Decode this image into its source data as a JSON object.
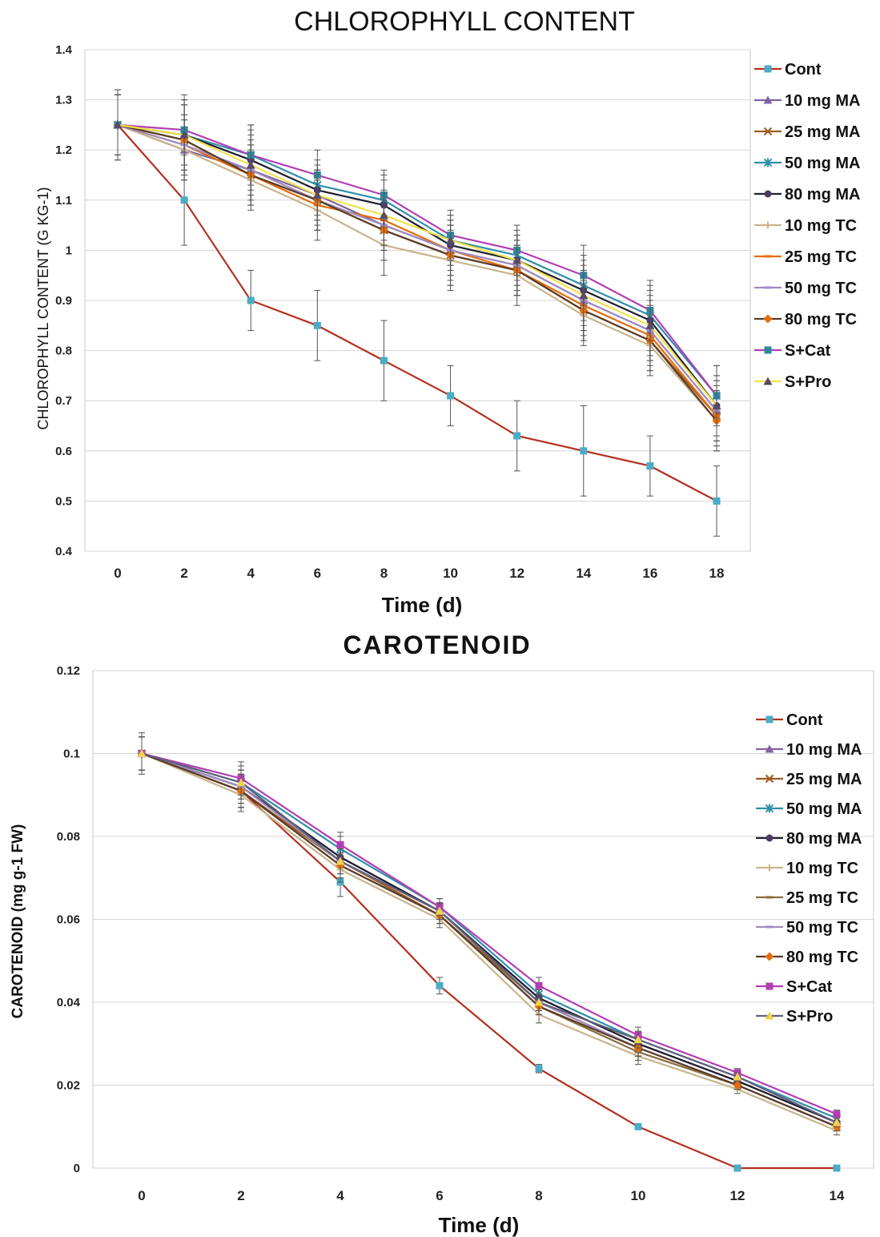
{
  "chart_data": [
    {
      "type": "line",
      "title": "CHLOROPHYLL CONTENT",
      "xlabel": "Time (d)",
      "ylabel": "CHLOROPHYLL CONTENT (G KG-1)",
      "x": [
        0,
        2,
        4,
        6,
        8,
        10,
        12,
        14,
        16,
        18
      ],
      "xlim": [
        0,
        18
      ],
      "ylim": [
        0.4,
        1.4
      ],
      "yticks": [
        "0.4",
        "0.5",
        "0.6",
        "0.7",
        "0.8",
        "0.9",
        "1",
        "1.1",
        "1.2",
        "1.3",
        "1.4"
      ],
      "grid": true,
      "legend_position": "right",
      "series": [
        {
          "name": "Cont",
          "color": "#b5301e",
          "marker": "square",
          "marker_color": "#4bacc6",
          "values": [
            1.25,
            1.1,
            0.9,
            0.85,
            0.78,
            0.71,
            0.63,
            0.6,
            0.57,
            0.5
          ],
          "errors": [
            0.07,
            0.09,
            0.06,
            0.07,
            0.08,
            0.06,
            0.07,
            0.09,
            0.06,
            0.07
          ]
        },
        {
          "name": "10 mg MA",
          "color": "#8064a2",
          "marker": "triangle",
          "marker_color": "#8064a2",
          "values": [
            1.25,
            1.2,
            1.16,
            1.11,
            1.05,
            1.0,
            0.97,
            0.9,
            0.84,
            0.68
          ],
          "errors": [
            0.06,
            0.06,
            0.05,
            0.05,
            0.05,
            0.06,
            0.05,
            0.06,
            0.06,
            0.06
          ]
        },
        {
          "name": "25 mg MA",
          "color": "#9b5b1e",
          "marker": "x",
          "marker_color": "#9b5b1e",
          "values": [
            1.25,
            1.22,
            1.15,
            1.1,
            1.04,
            0.99,
            0.96,
            0.88,
            0.82,
            0.67
          ],
          "errors": [
            0.06,
            0.07,
            0.06,
            0.06,
            0.06,
            0.06,
            0.05,
            0.06,
            0.06,
            0.06
          ]
        },
        {
          "name": "50 mg MA",
          "color": "#2f8fa8",
          "marker": "star",
          "marker_color": "#2f8fa8",
          "values": [
            1.25,
            1.23,
            1.19,
            1.13,
            1.1,
            1.02,
            0.99,
            0.93,
            0.87,
            0.71
          ],
          "errors": [
            0.07,
            0.07,
            0.06,
            0.05,
            0.05,
            0.05,
            0.05,
            0.06,
            0.06,
            0.06
          ]
        },
        {
          "name": "80 mg MA",
          "color": "#1f1f2e",
          "marker": "circle",
          "marker_color": "#4b3b64",
          "values": [
            1.25,
            1.23,
            1.18,
            1.12,
            1.09,
            1.01,
            0.98,
            0.92,
            0.86,
            0.69
          ],
          "errors": [
            0.06,
            0.07,
            0.06,
            0.05,
            0.05,
            0.05,
            0.05,
            0.06,
            0.06,
            0.06
          ]
        },
        {
          "name": "10 mg TC",
          "color": "#c9b48c",
          "marker": "plus",
          "marker_color": "#c9b48c",
          "values": [
            1.25,
            1.2,
            1.14,
            1.08,
            1.01,
            0.98,
            0.95,
            0.87,
            0.81,
            0.66
          ],
          "errors": [
            0.06,
            0.06,
            0.06,
            0.06,
            0.06,
            0.06,
            0.06,
            0.06,
            0.06,
            0.06
          ]
        },
        {
          "name": "25 mg TC",
          "color": "#e36c09",
          "marker": "dash",
          "marker_color": "#e36c09",
          "values": [
            1.25,
            1.21,
            1.15,
            1.09,
            1.06,
            1.0,
            0.96,
            0.89,
            0.83,
            0.67
          ],
          "errors": [
            0.06,
            0.06,
            0.06,
            0.05,
            0.05,
            0.05,
            0.05,
            0.06,
            0.06,
            0.06
          ]
        },
        {
          "name": "50 mg TC",
          "color": "#a08cc0",
          "marker": "dash",
          "marker_color": "#a08cc0",
          "values": [
            1.25,
            1.21,
            1.16,
            1.1,
            1.05,
            1.0,
            0.97,
            0.9,
            0.84,
            0.68
          ],
          "errors": [
            0.06,
            0.06,
            0.06,
            0.05,
            0.05,
            0.05,
            0.05,
            0.06,
            0.06,
            0.06
          ]
        },
        {
          "name": "80 mg TC",
          "color": "#5a3c28",
          "marker": "diamond",
          "marker_color": "#e36c09",
          "values": [
            1.25,
            1.22,
            1.15,
            1.1,
            1.04,
            0.99,
            0.96,
            0.88,
            0.82,
            0.66
          ],
          "errors": [
            0.06,
            0.07,
            0.06,
            0.06,
            0.06,
            0.06,
            0.05,
            0.06,
            0.06,
            0.06
          ]
        },
        {
          "name": "S+Cat",
          "color": "#b23fb2",
          "marker": "square",
          "marker_color": "#31859c",
          "values": [
            1.25,
            1.24,
            1.19,
            1.15,
            1.11,
            1.03,
            1.0,
            0.95,
            0.88,
            0.71
          ],
          "errors": [
            0.06,
            0.07,
            0.06,
            0.05,
            0.05,
            0.05,
            0.05,
            0.06,
            0.06,
            0.06
          ]
        },
        {
          "name": "S+Pro",
          "color": "#f2e14c",
          "marker": "triangle",
          "marker_color": "#5a4a6a",
          "values": [
            1.25,
            1.23,
            1.17,
            1.11,
            1.07,
            1.02,
            0.98,
            0.91,
            0.85,
            0.69
          ],
          "errors": [
            0.06,
            0.06,
            0.06,
            0.05,
            0.05,
            0.05,
            0.05,
            0.06,
            0.06,
            0.06
          ]
        }
      ]
    },
    {
      "type": "line",
      "title": "CAROTENOID",
      "xlabel": "Time (d)",
      "ylabel": "CAROTENOID (mg g-1 FW)",
      "x": [
        0,
        2,
        4,
        6,
        8,
        10,
        12,
        14
      ],
      "xlim": [
        0,
        14
      ],
      "ylim": [
        0,
        0.12
      ],
      "yticks": [
        "0",
        "0.02",
        "0.04",
        "0.06",
        "0.08",
        "0.1",
        "0.12"
      ],
      "grid": true,
      "legend_position": "right",
      "series": [
        {
          "name": "Cont",
          "color": "#b5301e",
          "marker": "square",
          "marker_color": "#4bacc6",
          "values": [
            0.1,
            0.091,
            0.069,
            0.044,
            0.024,
            0.01,
            0.0,
            0.0
          ],
          "errors": [
            0.005,
            0.004,
            0.0035,
            0.002,
            0.001,
            0.0005,
            0.0,
            0.0
          ]
        },
        {
          "name": "10 mg MA",
          "color": "#8064a2",
          "marker": "triangle",
          "marker_color": "#8064a2",
          "values": [
            0.1,
            0.092,
            0.075,
            0.062,
            0.041,
            0.03,
            0.021,
            0.011
          ],
          "errors": [
            0.004,
            0.004,
            0.003,
            0.002,
            0.002,
            0.002,
            0.001,
            0.001
          ]
        },
        {
          "name": "25 mg MA",
          "color": "#9b5b1e",
          "marker": "x",
          "marker_color": "#9b5b1e",
          "values": [
            0.1,
            0.091,
            0.074,
            0.061,
            0.04,
            0.029,
            0.02,
            0.01
          ],
          "errors": [
            0.004,
            0.004,
            0.003,
            0.002,
            0.002,
            0.002,
            0.001,
            0.001
          ]
        },
        {
          "name": "50 mg MA",
          "color": "#2f8fa8",
          "marker": "star",
          "marker_color": "#2f8fa8",
          "values": [
            0.1,
            0.093,
            0.077,
            0.063,
            0.042,
            0.031,
            0.022,
            0.012
          ],
          "errors": [
            0.004,
            0.004,
            0.003,
            0.002,
            0.002,
            0.002,
            0.001,
            0.001
          ]
        },
        {
          "name": "80 mg MA",
          "color": "#1f1f2e",
          "marker": "circle",
          "marker_color": "#4b3b64",
          "values": [
            0.1,
            0.092,
            0.075,
            0.062,
            0.041,
            0.03,
            0.021,
            0.011
          ],
          "errors": [
            0.004,
            0.004,
            0.003,
            0.002,
            0.002,
            0.002,
            0.001,
            0.001
          ]
        },
        {
          "name": "10 mg TC",
          "color": "#c9b48c",
          "marker": "plus",
          "marker_color": "#c9b48c",
          "values": [
            0.1,
            0.09,
            0.072,
            0.06,
            0.037,
            0.027,
            0.019,
            0.009
          ],
          "errors": [
            0.004,
            0.004,
            0.003,
            0.002,
            0.002,
            0.002,
            0.001,
            0.001
          ]
        },
        {
          "name": "25 mg TC",
          "color": "#8a6d3b",
          "marker": "dash",
          "marker_color": "#8a6d3b",
          "values": [
            0.1,
            0.091,
            0.073,
            0.061,
            0.039,
            0.028,
            0.02,
            0.01
          ],
          "errors": [
            0.004,
            0.004,
            0.003,
            0.002,
            0.002,
            0.002,
            0.001,
            0.001
          ]
        },
        {
          "name": "50 mg TC",
          "color": "#a08cc0",
          "marker": "dash",
          "marker_color": "#a08cc0",
          "values": [
            0.1,
            0.092,
            0.074,
            0.062,
            0.04,
            0.029,
            0.02,
            0.01
          ],
          "errors": [
            0.004,
            0.004,
            0.003,
            0.002,
            0.002,
            0.002,
            0.001,
            0.001
          ]
        },
        {
          "name": "80 mg TC",
          "color": "#5a3c28",
          "marker": "diamond",
          "marker_color": "#e36c09",
          "values": [
            0.1,
            0.091,
            0.073,
            0.061,
            0.039,
            0.029,
            0.02,
            0.01
          ],
          "errors": [
            0.004,
            0.004,
            0.003,
            0.002,
            0.002,
            0.002,
            0.001,
            0.001
          ]
        },
        {
          "name": "S+Cat",
          "color": "#b23fb2",
          "marker": "square",
          "marker_color": "#b23fb2",
          "values": [
            0.1,
            0.094,
            0.078,
            0.063,
            0.044,
            0.032,
            0.023,
            0.013
          ],
          "errors": [
            0.004,
            0.004,
            0.003,
            0.002,
            0.002,
            0.002,
            0.001,
            0.001
          ]
        },
        {
          "name": "S+Pro",
          "color": "#5f5f7a",
          "marker": "triangle",
          "marker_color": "#f2d24c",
          "values": [
            0.1,
            0.093,
            0.074,
            0.062,
            0.04,
            0.031,
            0.022,
            0.011
          ],
          "errors": [
            0.004,
            0.004,
            0.003,
            0.002,
            0.002,
            0.002,
            0.001,
            0.001
          ]
        }
      ]
    }
  ]
}
